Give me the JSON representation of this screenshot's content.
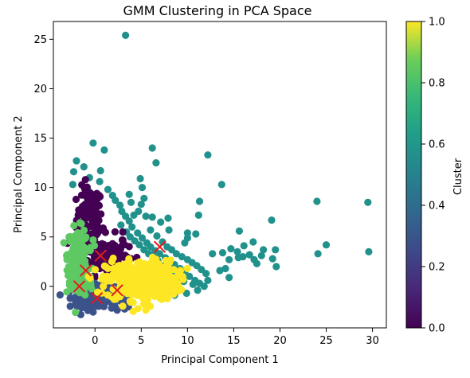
{
  "chart_data": {
    "type": "scatter",
    "title": "GMM Clustering in PCA Space",
    "xlabel": "Principal Component 1",
    "ylabel": "Principal Component 2",
    "xlim": [
      -4.5,
      31.5
    ],
    "ylim": [
      -4.2,
      26.8
    ],
    "xticks": [
      0,
      5,
      10,
      15,
      20,
      25,
      30
    ],
    "yticks": [
      0,
      5,
      10,
      15,
      20,
      25
    ],
    "grid": false,
    "colorbar": {
      "label": "Cluster",
      "range": [
        0.0,
        1.0
      ],
      "ticks": [
        "0.0",
        "0.2",
        "0.4",
        "0.6",
        "0.8",
        "1.0"
      ],
      "colormap": "viridis"
    },
    "clusters": [
      {
        "value": 0.0,
        "color": "#440154",
        "regions": [
          {
            "cx": -0.6,
            "cy": 6.8,
            "sx": 0.7,
            "sy": 1.6,
            "n": 110
          },
          {
            "cx": 1.2,
            "cy": 3.2,
            "sx": 1.2,
            "sy": 1.0,
            "n": 120
          }
        ],
        "points": [
          [
            -1.0,
            9.6
          ],
          [
            0.2,
            9.4
          ],
          [
            3.0,
            5.5
          ],
          [
            0.5,
            1.8
          ],
          [
            -0.3,
            2.4
          ]
        ]
      },
      {
        "value": 0.25,
        "color": "#3b528b",
        "regions": [
          {
            "cx": -0.3,
            "cy": -1.0,
            "sx": 1.2,
            "sy": 0.55,
            "n": 120
          },
          {
            "cx": 2.0,
            "cy": -1.3,
            "sx": 1.1,
            "sy": 0.5,
            "n": 70
          }
        ],
        "points": [
          [
            -2.8,
            -0.6
          ],
          [
            3.2,
            -2.3
          ],
          [
            -0.2,
            -2.6
          ],
          [
            1.8,
            -2.2
          ]
        ]
      },
      {
        "value": 0.5,
        "color": "#21918c",
        "regions": [],
        "points": [
          [
            3.3,
            25.4
          ],
          [
            -0.2,
            14.5
          ],
          [
            1.0,
            13.8
          ],
          [
            -2.0,
            12.7
          ],
          [
            -2.3,
            11.6
          ],
          [
            -1.2,
            12.1
          ],
          [
            -0.6,
            11.0
          ],
          [
            0.6,
            11.7
          ],
          [
            -2.4,
            10.3
          ],
          [
            0.5,
            10.6
          ],
          [
            -0.8,
            9.8
          ],
          [
            1.4,
            9.8
          ],
          [
            1.9,
            9.2
          ],
          [
            2.2,
            8.7
          ],
          [
            2.7,
            8.2
          ],
          [
            2.9,
            7.6
          ],
          [
            3.3,
            7.1
          ],
          [
            3.7,
            6.6
          ],
          [
            4.0,
            6.0
          ],
          [
            4.6,
            5.4
          ],
          [
            5.1,
            4.9
          ],
          [
            5.6,
            4.4
          ],
          [
            6.0,
            4.0
          ],
          [
            6.5,
            3.6
          ],
          [
            7.0,
            3.3
          ],
          [
            7.6,
            2.9
          ],
          [
            8.1,
            2.5
          ],
          [
            8.6,
            2.2
          ],
          [
            9.2,
            1.8
          ],
          [
            9.7,
            1.4
          ],
          [
            10.2,
            1.0
          ],
          [
            10.8,
            0.6
          ],
          [
            11.3,
            0.3
          ],
          [
            11.8,
            0.0
          ],
          [
            10.6,
            0.2
          ],
          [
            9.6,
            0.5
          ],
          [
            8.9,
            0.9
          ],
          [
            8.3,
            1.4
          ],
          [
            7.8,
            1.7
          ],
          [
            7.2,
            2.1
          ],
          [
            6.8,
            2.6
          ],
          [
            6.3,
            3.0
          ],
          [
            5.8,
            3.3
          ],
          [
            5.3,
            3.7
          ],
          [
            4.8,
            4.2
          ],
          [
            4.3,
            4.6
          ],
          [
            3.8,
            5.0
          ],
          [
            3.4,
            5.5
          ],
          [
            2.8,
            6.2
          ],
          [
            4.9,
            10.9
          ],
          [
            5.1,
            10.0
          ],
          [
            5.3,
            8.9
          ],
          [
            5.0,
            8.3
          ],
          [
            4.7,
            7.6
          ],
          [
            5.5,
            7.1
          ],
          [
            6.2,
            7.0
          ],
          [
            6.2,
            14.0
          ],
          [
            6.6,
            12.5
          ],
          [
            3.7,
            9.3
          ],
          [
            3.9,
            8.5
          ],
          [
            4.2,
            7.2
          ],
          [
            6.0,
            5.7
          ],
          [
            6.7,
            5.1
          ],
          [
            7.3,
            4.5
          ],
          [
            7.8,
            4.0
          ],
          [
            8.3,
            3.7
          ],
          [
            8.8,
            3.3
          ],
          [
            9.4,
            3.0
          ],
          [
            10.0,
            2.7
          ],
          [
            10.5,
            2.4
          ],
          [
            11.0,
            2.1
          ],
          [
            11.5,
            1.7
          ],
          [
            12.0,
            1.3
          ],
          [
            12.2,
            13.3
          ],
          [
            13.7,
            10.3
          ],
          [
            11.3,
            8.6
          ],
          [
            11.2,
            7.2
          ],
          [
            7.9,
            6.9
          ],
          [
            7.1,
            6.5
          ],
          [
            8.0,
            5.7
          ],
          [
            10.0,
            5.4
          ],
          [
            10.9,
            5.3
          ],
          [
            10.0,
            4.9
          ],
          [
            9.7,
            4.4
          ],
          [
            12.7,
            3.3
          ],
          [
            13.8,
            3.4
          ],
          [
            14.7,
            3.8
          ],
          [
            15.4,
            3.5
          ],
          [
            15.6,
            5.6
          ],
          [
            16.1,
            4.1
          ],
          [
            17.1,
            4.5
          ],
          [
            18.0,
            3.1
          ],
          [
            18.2,
            3.7
          ],
          [
            17.5,
            2.3
          ],
          [
            17.2,
            2.7
          ],
          [
            16.7,
            3.2
          ],
          [
            16.0,
            3.0
          ],
          [
            15.5,
            2.9
          ],
          [
            14.5,
            2.7
          ],
          [
            14.1,
            1.8
          ],
          [
            14.5,
            0.9
          ],
          [
            13.5,
            1.6
          ],
          [
            19.2,
            2.8
          ],
          [
            19.1,
            6.7
          ],
          [
            19.5,
            3.7
          ],
          [
            19.6,
            2.0
          ],
          [
            24.0,
            8.6
          ],
          [
            24.1,
            3.3
          ],
          [
            25.0,
            4.2
          ],
          [
            29.5,
            8.5
          ],
          [
            29.6,
            3.5
          ],
          [
            12.2,
            0.6
          ],
          [
            11.1,
            -0.4
          ],
          [
            9.9,
            -0.7
          ],
          [
            8.6,
            -0.9
          ]
        ]
      },
      {
        "value": 0.75,
        "color": "#5ec962",
        "regions": [
          {
            "cx": -1.8,
            "cy": 3.0,
            "sx": 0.55,
            "sy": 1.4,
            "n": 150
          },
          {
            "cx": -1.5,
            "cy": 0.4,
            "sx": 0.6,
            "sy": 0.7,
            "n": 70
          }
        ],
        "points": [
          [
            -2.8,
            5.0
          ],
          [
            -3.0,
            3.2
          ],
          [
            -2.9,
            1.1
          ],
          [
            -0.2,
            4.7
          ]
        ]
      },
      {
        "value": 1.0,
        "color": "#fde725",
        "regions": [
          {
            "cx": 5.0,
            "cy": 0.6,
            "sx": 1.9,
            "sy": 1.0,
            "n": 380
          }
        ],
        "points": [
          [
            2.0,
            1.8
          ],
          [
            8.9,
            0.3
          ],
          [
            8.5,
            -0.8
          ],
          [
            5.5,
            -2.4
          ],
          [
            3.0,
            -2.0
          ],
          [
            9.1,
            1.5
          ]
        ]
      }
    ],
    "centers": [
      [
        0.6,
        3.1
      ],
      [
        -1.0,
        1.6
      ],
      [
        -1.7,
        0.0
      ],
      [
        0.2,
        -1.2
      ],
      [
        2.4,
        -0.4
      ],
      [
        7.0,
        4.0
      ]
    ],
    "center_color": "#e41a1c"
  }
}
